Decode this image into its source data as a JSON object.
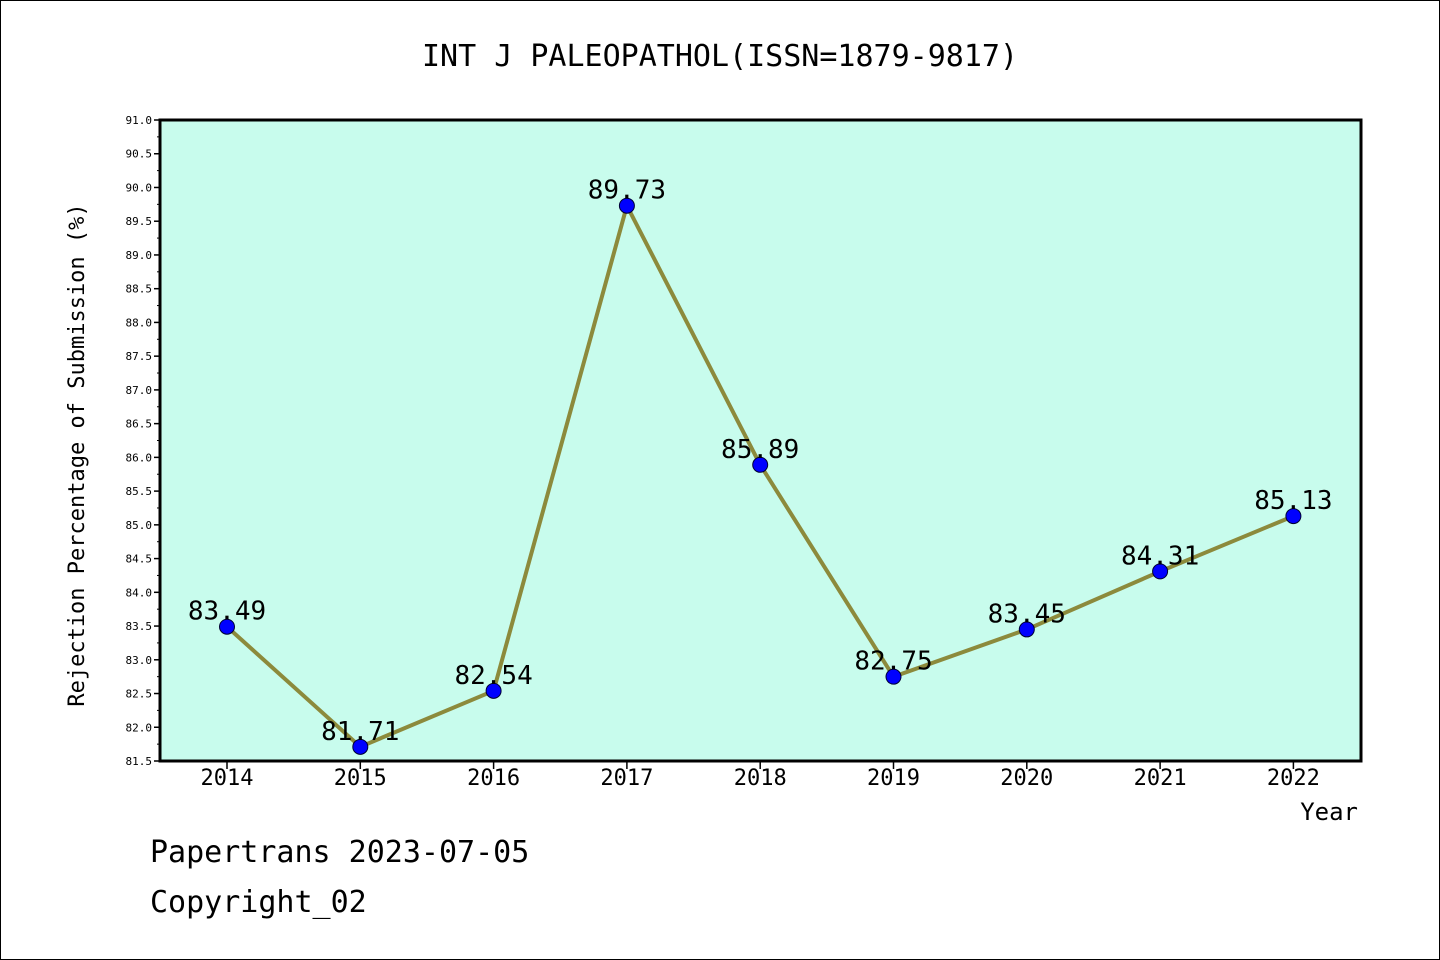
{
  "chart_data": {
    "type": "line",
    "title": "INT J PALEOPATHOL(ISSN=1879-9817)",
    "xlabel": "Year",
    "ylabel": "Rejection Percentage of Submission (%)",
    "categories": [
      "2014",
      "2015",
      "2016",
      "2017",
      "2018",
      "2019",
      "2020",
      "2021",
      "2022"
    ],
    "values": [
      83.49,
      81.71,
      82.54,
      89.73,
      85.89,
      82.75,
      83.45,
      84.31,
      85.13
    ],
    "data_labels": [
      "83.49",
      "81.71",
      "82.54",
      "89.73",
      "85.89",
      "82.75",
      "83.45",
      "84.31",
      "85.13"
    ],
    "ylim": [
      81.5,
      91.0
    ],
    "y_ticks": [
      "81.5",
      "82.0",
      "82.5",
      "83.0",
      "83.5",
      "84.0",
      "84.5",
      "85.0",
      "85.5",
      "86.0",
      "86.5",
      "87.0",
      "87.5",
      "88.0",
      "88.5",
      "89.0",
      "89.5",
      "90.0",
      "90.5",
      "91.0"
    ],
    "grid": false,
    "colors": {
      "plot_background": "#c8fced",
      "line": "#8c8a3c",
      "marker": "#0000ff"
    }
  },
  "footer": {
    "line1": "Papertrans 2023-07-05",
    "line2": "Copyright_02"
  }
}
